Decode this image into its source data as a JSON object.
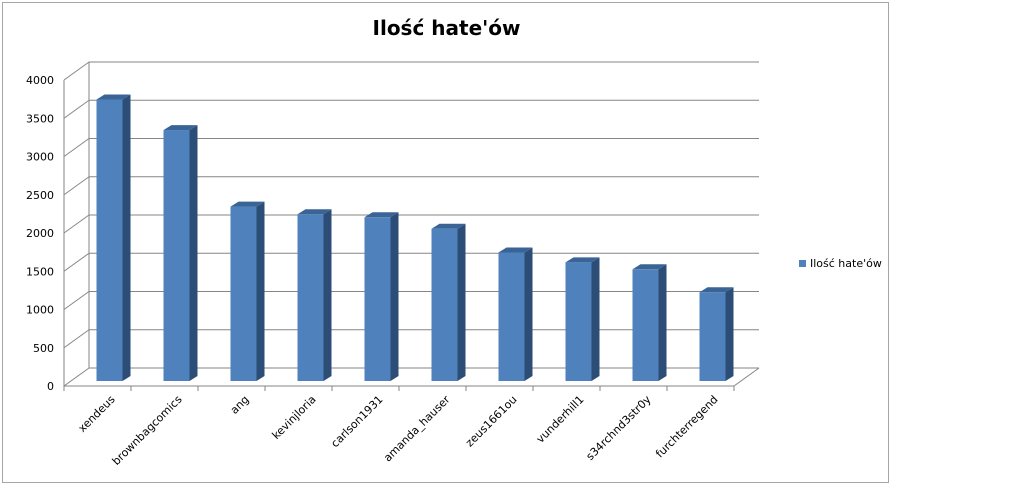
{
  "chart_data": {
    "type": "bar",
    "title": "Ilość hate'ów",
    "categories": [
      "xendeus",
      "brownbagcomics",
      "ang",
      "kevinjloria",
      "carlson1931",
      "amanda_hauser",
      "zeus1661ou",
      "vunderhill1",
      "s34rchnd3str0y",
      "furchterregend"
    ],
    "series": [
      {
        "name": "Ilość hate'ów",
        "values": [
          3680,
          3280,
          2280,
          2180,
          2140,
          1990,
          1680,
          1550,
          1460,
          1160
        ]
      }
    ],
    "ylim": [
      0,
      4000
    ],
    "yticks": [
      0,
      500,
      1000,
      1500,
      2000,
      2500,
      3000,
      3500,
      4000
    ],
    "grid": true,
    "legend_position": "right",
    "colors": {
      "bar_front": "#4f81bd",
      "bar_side": "#2c4d75",
      "bar_top": "#3a6496",
      "grid": "#868686",
      "axis": "#868686"
    }
  }
}
